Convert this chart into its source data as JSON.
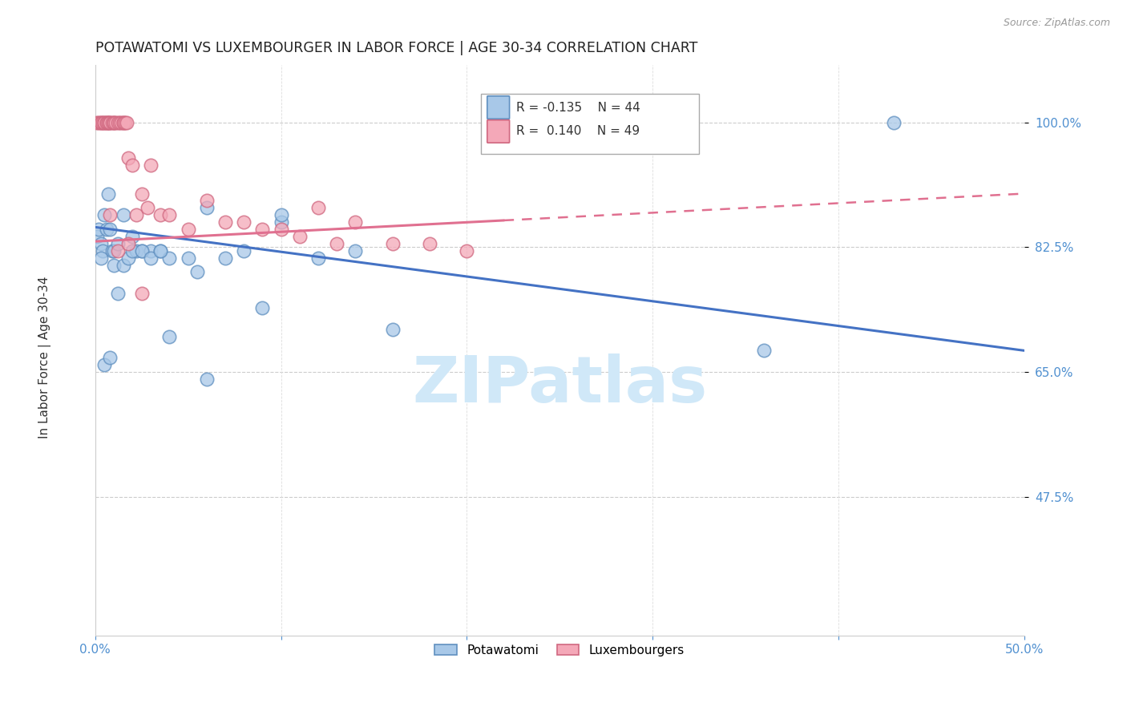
{
  "title": "POTAWATOMI VS LUXEMBOURGER IN LABOR FORCE | AGE 30-34 CORRELATION CHART",
  "source": "Source: ZipAtlas.com",
  "ylabel": "In Labor Force | Age 30-34",
  "xlim": [
    0.0,
    0.5
  ],
  "ylim": [
    0.28,
    1.08
  ],
  "ytick_positions": [
    1.0,
    0.825,
    0.65,
    0.475
  ],
  "ytick_labels": [
    "100.0%",
    "82.5%",
    "65.0%",
    "47.5%"
  ],
  "blue_R": -0.135,
  "blue_N": 44,
  "pink_R": 0.14,
  "pink_N": 49,
  "blue_color": "#a8c8e8",
  "pink_color": "#f4a8b8",
  "blue_edge_color": "#6090c0",
  "pink_edge_color": "#d06880",
  "blue_line_color": "#4472c4",
  "pink_line_color": "#e07090",
  "watermark": "ZIPatlas",
  "watermark_color": "#d0e8f8",
  "legend_label_blue": "Potawatomi",
  "legend_label_pink": "Luxembourgers",
  "blue_x": [
    0.001,
    0.002,
    0.003,
    0.004,
    0.005,
    0.006,
    0.007,
    0.008,
    0.009,
    0.01,
    0.01,
    0.012,
    0.015,
    0.015,
    0.018,
    0.02,
    0.022,
    0.025,
    0.03,
    0.035,
    0.04,
    0.05,
    0.06,
    0.07,
    0.08,
    0.09,
    0.1,
    0.12,
    0.14,
    0.16,
    0.003,
    0.005,
    0.008,
    0.012,
    0.02,
    0.025,
    0.03,
    0.035,
    0.04,
    0.055,
    0.06,
    0.1,
    0.36,
    0.43
  ],
  "blue_y": [
    0.84,
    0.85,
    0.83,
    0.82,
    0.87,
    0.85,
    0.9,
    0.85,
    0.82,
    0.82,
    0.8,
    0.83,
    0.87,
    0.8,
    0.81,
    0.84,
    0.82,
    0.82,
    0.82,
    0.82,
    0.81,
    0.81,
    0.88,
    0.81,
    0.82,
    0.74,
    0.86,
    0.81,
    0.82,
    0.71,
    0.81,
    0.66,
    0.67,
    0.76,
    0.82,
    0.82,
    0.81,
    0.82,
    0.7,
    0.79,
    0.64,
    0.87,
    0.68,
    1.0
  ],
  "pink_x": [
    0.001,
    0.002,
    0.003,
    0.003,
    0.004,
    0.005,
    0.005,
    0.006,
    0.006,
    0.007,
    0.007,
    0.008,
    0.008,
    0.009,
    0.01,
    0.01,
    0.011,
    0.012,
    0.013,
    0.014,
    0.015,
    0.015,
    0.016,
    0.017,
    0.018,
    0.02,
    0.022,
    0.025,
    0.028,
    0.03,
    0.035,
    0.04,
    0.05,
    0.06,
    0.07,
    0.08,
    0.09,
    0.1,
    0.11,
    0.12,
    0.13,
    0.14,
    0.16,
    0.18,
    0.2,
    0.008,
    0.012,
    0.018,
    0.025
  ],
  "pink_y": [
    1.0,
    1.0,
    1.0,
    1.0,
    1.0,
    1.0,
    1.0,
    1.0,
    1.0,
    1.0,
    1.0,
    1.0,
    1.0,
    1.0,
    1.0,
    1.0,
    1.0,
    1.0,
    1.0,
    1.0,
    1.0,
    1.0,
    1.0,
    1.0,
    0.95,
    0.94,
    0.87,
    0.9,
    0.88,
    0.94,
    0.87,
    0.87,
    0.85,
    0.89,
    0.86,
    0.86,
    0.85,
    0.85,
    0.84,
    0.88,
    0.83,
    0.86,
    0.83,
    0.83,
    0.82,
    0.87,
    0.82,
    0.83,
    0.76
  ],
  "blue_trend_x0": 0.0,
  "blue_trend_y0": 0.853,
  "blue_trend_x1": 0.5,
  "blue_trend_y1": 0.68,
  "pink_trend_x0": 0.0,
  "pink_trend_y0": 0.833,
  "pink_trend_x1": 0.5,
  "pink_trend_y1": 0.9
}
